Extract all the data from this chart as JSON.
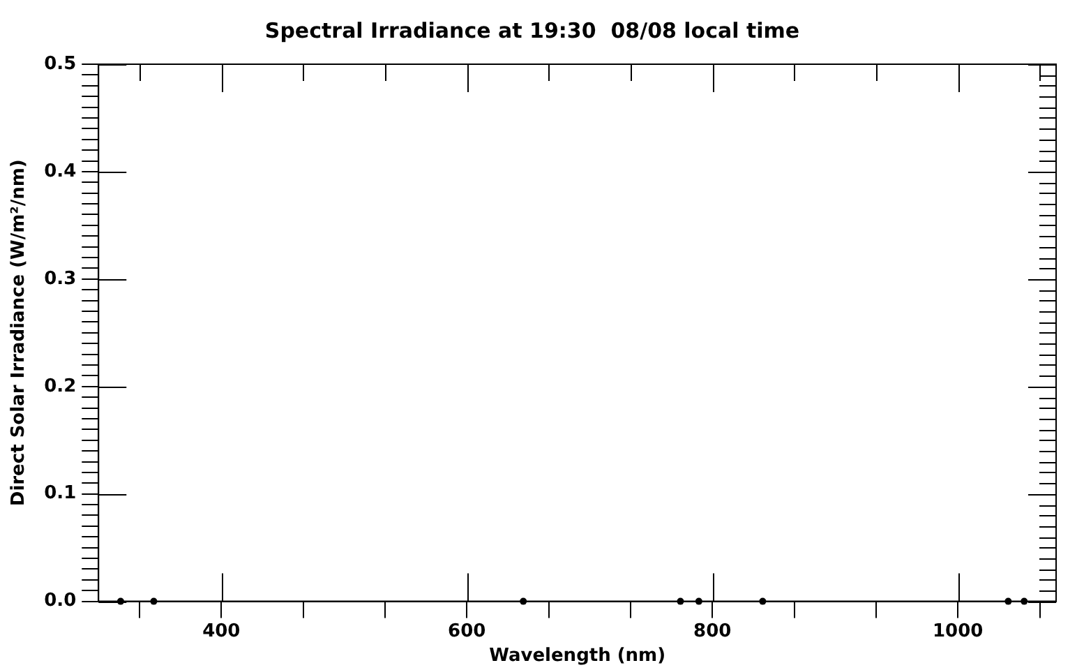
{
  "chart_data": {
    "type": "scatter",
    "title": "Spectral Irradiance at 19:30  08/08 local time",
    "xlabel": "Wavelength (nm)",
    "ylabel": "Direct Solar Irradiance (W/m²/nm)",
    "x": [
      318,
      345,
      646,
      774,
      789,
      841,
      1041,
      1054
    ],
    "series": [
      {
        "color": "#000000",
        "values": [
          0,
          0,
          0,
          0,
          0,
          0,
          0,
          0
        ]
      }
    ],
    "marker": "circle",
    "grid": false,
    "legend": false,
    "xlim": [
      300,
      1080
    ],
    "xticks": [
      {
        "value": 333.33,
        "label": null
      },
      400,
      {
        "value": 466.67,
        "label": null
      },
      {
        "value": 533.33,
        "label": null
      },
      600,
      {
        "value": 666.67,
        "label": null
      },
      {
        "value": 733.33,
        "label": null
      },
      800,
      {
        "value": 866.67,
        "label": null
      },
      {
        "value": 933.33,
        "label": null
      },
      1000,
      {
        "value": 1066.67,
        "label": null
      }
    ],
    "ylim": [
      0,
      0.5
    ],
    "yticks": [
      {
        "value": 0,
        "label": "0.0"
      },
      {
        "value": 0.01,
        "label": null
      },
      {
        "value": 0.02,
        "label": null
      },
      {
        "value": 0.03,
        "label": null
      },
      {
        "value": 0.04,
        "label": null
      },
      {
        "value": 0.05,
        "label": null
      },
      {
        "value": 0.06,
        "label": null
      },
      {
        "value": 0.07,
        "label": null
      },
      {
        "value": 0.08,
        "label": null
      },
      {
        "value": 0.09,
        "label": null
      },
      {
        "value": 0.1,
        "label": "0.1"
      },
      {
        "value": 0.11,
        "label": null
      },
      {
        "value": 0.12,
        "label": null
      },
      {
        "value": 0.13,
        "label": null
      },
      {
        "value": 0.14,
        "label": null
      },
      {
        "value": 0.15,
        "label": null
      },
      {
        "value": 0.16,
        "label": null
      },
      {
        "value": 0.17,
        "label": null
      },
      {
        "value": 0.18,
        "label": null
      },
      {
        "value": 0.19,
        "label": null
      },
      {
        "value": 0.2,
        "label": "0.2"
      },
      {
        "value": 0.21,
        "label": null
      },
      {
        "value": 0.22,
        "label": null
      },
      {
        "value": 0.23,
        "label": null
      },
      {
        "value": 0.24,
        "label": null
      },
      {
        "value": 0.25,
        "label": null
      },
      {
        "value": 0.26,
        "label": null
      },
      {
        "value": 0.27,
        "label": null
      },
      {
        "value": 0.28,
        "label": null
      },
      {
        "value": 0.29,
        "label": null
      },
      {
        "value": 0.3,
        "label": "0.3"
      },
      {
        "value": 0.31,
        "label": null
      },
      {
        "value": 0.32,
        "label": null
      },
      {
        "value": 0.33,
        "label": null
      },
      {
        "value": 0.34,
        "label": null
      },
      {
        "value": 0.35,
        "label": null
      },
      {
        "value": 0.36,
        "label": null
      },
      {
        "value": 0.37,
        "label": null
      },
      {
        "value": 0.38,
        "label": null
      },
      {
        "value": 0.39,
        "label": null
      },
      {
        "value": 0.4,
        "label": "0.4"
      },
      {
        "value": 0.41,
        "label": null
      },
      {
        "value": 0.42,
        "label": null
      },
      {
        "value": 0.43,
        "label": null
      },
      {
        "value": 0.44,
        "label": null
      },
      {
        "value": 0.45,
        "label": null
      },
      {
        "value": 0.46,
        "label": null
      },
      {
        "value": 0.47,
        "label": null
      },
      {
        "value": 0.48,
        "label": null
      },
      {
        "value": 0.49,
        "label": null
      },
      {
        "value": 0.5,
        "label": "0.5"
      }
    ]
  }
}
